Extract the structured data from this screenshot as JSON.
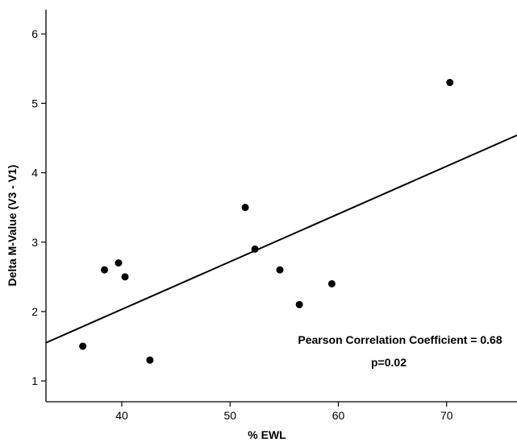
{
  "chart_data": {
    "type": "scatter",
    "title": "",
    "xlabel": "% EWL",
    "ylabel": "Delta M-Value (V3 - V1)",
    "xlim": [
      33,
      76.5
    ],
    "ylim": [
      0.7,
      6.35
    ],
    "xticks": [
      40,
      50,
      60,
      70
    ],
    "yticks": [
      1,
      2,
      3,
      4,
      5,
      6
    ],
    "grid": false,
    "series": [
      {
        "points": [
          {
            "x": 36.4,
            "y": 1.5
          },
          {
            "x": 38.4,
            "y": 2.6
          },
          {
            "x": 39.7,
            "y": 2.7
          },
          {
            "x": 40.3,
            "y": 2.5
          },
          {
            "x": 42.6,
            "y": 1.3
          },
          {
            "x": 51.4,
            "y": 3.5
          },
          {
            "x": 52.3,
            "y": 2.9
          },
          {
            "x": 54.6,
            "y": 2.6
          },
          {
            "x": 56.4,
            "y": 2.1
          },
          {
            "x": 59.4,
            "y": 2.4
          },
          {
            "x": 70.3,
            "y": 5.3
          }
        ]
      }
    ],
    "fit_line": {
      "x": [
        33,
        76.5
      ],
      "y": [
        1.55,
        4.54
      ]
    },
    "annotations": [
      "Pearson Correlation Coefficient = 0.68",
      "p=0.02"
    ]
  }
}
